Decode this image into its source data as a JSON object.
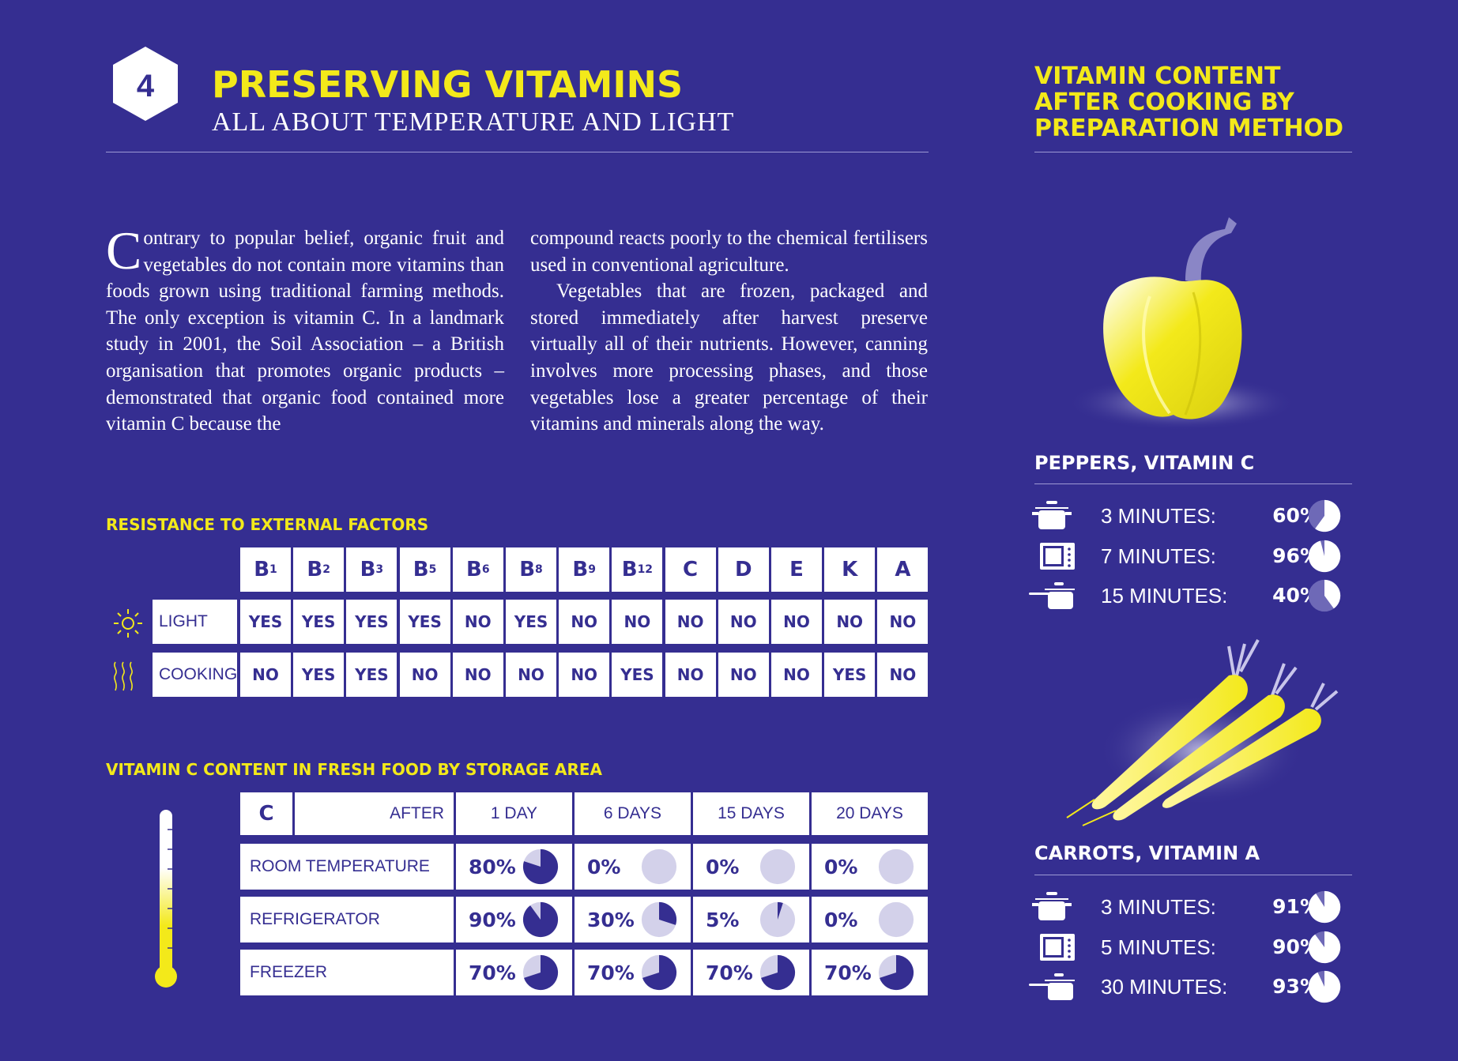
{
  "header": {
    "section_number": "4",
    "title": "PRESERVING VITAMINS",
    "subtitle": "ALL ABOUT TEMPERATURE AND LIGHT"
  },
  "side": {
    "title": "VITAMIN CONTENT AFTER COOKING BY PREPARATION METHOD"
  },
  "body": {
    "dropcap": "C",
    "col1": "ontrary to popular belief, organic fruit and vegetables do not contain more vitamins than foods grown using traditional farming methods. The only exception is vitamin C. In a landmark study in 2001, the Soil Association – a British organisation that promotes organic products – demonstrated that organic food contained more vitamin C because the",
    "col2_p1": "compound reacts poorly to the chemical fertilisers used in conventional agriculture.",
    "col2_p2": "Vegetables that are frozen, packaged and stored immediately after harvest preserve virtually all of their nutrients. However, canning involves more processing phases, and those vegetables lose a greater percentage of their vitamins and minerals along the way."
  },
  "colors": {
    "background": "#352e91",
    "accent": "#f3e91a",
    "pie_light": "#d3d1ea",
    "pie_dark": "#352e91"
  },
  "chart_data": [
    {
      "type": "table",
      "title": "RESISTANCE TO EXTERNAL FACTORS",
      "columns": [
        {
          "letter": "B",
          "sub": "1"
        },
        {
          "letter": "B",
          "sub": "2"
        },
        {
          "letter": "B",
          "sub": "3"
        },
        {
          "letter": "B",
          "sub": "5"
        },
        {
          "letter": "B",
          "sub": "6"
        },
        {
          "letter": "B",
          "sub": "8"
        },
        {
          "letter": "B",
          "sub": "9"
        },
        {
          "letter": "B",
          "sub": "12"
        },
        {
          "letter": "C",
          "sub": ""
        },
        {
          "letter": "D",
          "sub": ""
        },
        {
          "letter": "E",
          "sub": ""
        },
        {
          "letter": "K",
          "sub": ""
        },
        {
          "letter": "A",
          "sub": ""
        }
      ],
      "rows": [
        {
          "label": "LIGHT",
          "icon": "sun-icon",
          "values": [
            "YES",
            "YES",
            "YES",
            "YES",
            "NO",
            "YES",
            "NO",
            "NO",
            "NO",
            "NO",
            "NO",
            "NO",
            "NO"
          ]
        },
        {
          "label": "COOKING",
          "icon": "heat-icon",
          "values": [
            "NO",
            "YES",
            "YES",
            "NO",
            "NO",
            "NO",
            "NO",
            "YES",
            "NO",
            "NO",
            "NO",
            "YES",
            "NO"
          ]
        }
      ]
    },
    {
      "type": "table",
      "title": "VITAMIN C CONTENT IN FRESH FOOD BY STORAGE AREA",
      "corner": "C",
      "after_label": "AFTER",
      "periods": [
        "1 DAY",
        "6 DAYS",
        "15 DAYS",
        "20 DAYS"
      ],
      "rows": [
        {
          "label": "ROOM TEMPERATURE",
          "values": [
            80,
            0,
            0,
            0
          ],
          "labels": [
            "80%",
            "0%",
            "0%",
            "0%"
          ]
        },
        {
          "label": "REFRIGERATOR",
          "values": [
            90,
            30,
            5,
            0
          ],
          "labels": [
            "90%",
            "30%",
            "5%",
            "0%"
          ]
        },
        {
          "label": "FREEZER",
          "values": [
            70,
            70,
            70,
            70
          ],
          "labels": [
            "70%",
            "70%",
            "70%",
            "70%"
          ]
        }
      ]
    },
    {
      "type": "pie",
      "title": "PEPPERS, VITAMIN C",
      "items": [
        {
          "method": "pot-icon",
          "label": "3 MINUTES:",
          "value": 60,
          "text": "60%"
        },
        {
          "method": "microwave-icon",
          "label": "7 MINUTES:",
          "value": 96,
          "text": "96%"
        },
        {
          "method": "pan-icon",
          "label": "15 MINUTES:",
          "value": 40,
          "text": "40%"
        }
      ]
    },
    {
      "type": "pie",
      "title": "CARROTS, VITAMIN A",
      "items": [
        {
          "method": "pot-icon",
          "label": "3 MINUTES:",
          "value": 91,
          "text": "91%"
        },
        {
          "method": "microwave-icon",
          "label": "5 MINUTES:",
          "value": 90,
          "text": "90%"
        },
        {
          "method": "pan-icon",
          "label": "30 MINUTES:",
          "value": 93,
          "text": "93%"
        }
      ]
    }
  ]
}
